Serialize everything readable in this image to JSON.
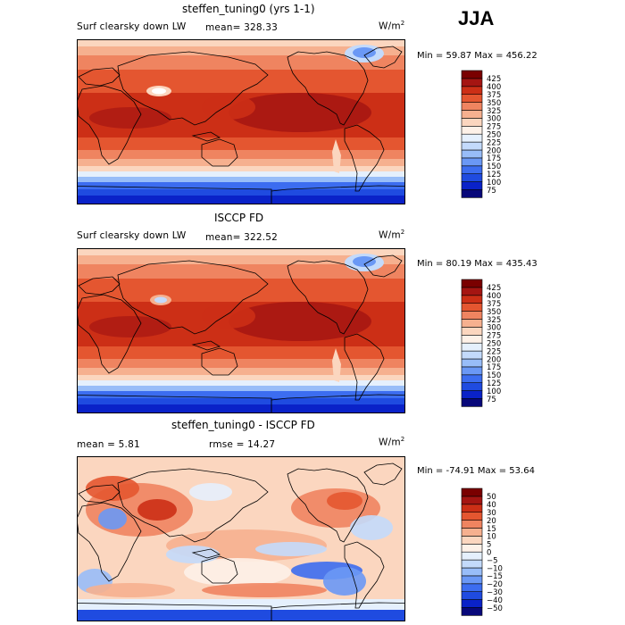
{
  "season": "JJA",
  "units_prefix": "W/m",
  "units_power": "2",
  "chart_data": [
    {
      "type": "heatmap",
      "title": "steffen_tuning0 (yrs 1-1)",
      "variable": "Surf clearsky down LW",
      "mean_text": "mean= 328.33",
      "minmax_text": "Min =  59.87 Max = 456.22",
      "min": 59.87,
      "max": 456.22,
      "levels": [
        75,
        100,
        125,
        150,
        175,
        200,
        225,
        250,
        275,
        300,
        325,
        350,
        375,
        400,
        425
      ],
      "colors": [
        "#08087a",
        "#0a22c8",
        "#1f4be0",
        "#3c6df0",
        "#6a98f5",
        "#98bdf8",
        "#c3dafb",
        "#e5f0fd",
        "#fdf1e8",
        "#fbd6bf",
        "#f6b08f",
        "#ef8460",
        "#e45630",
        "#cc2f16",
        "#a51512",
        "#7a0000"
      ]
    },
    {
      "type": "heatmap",
      "title": "ISCCP FD",
      "variable": "Surf clearsky down LW",
      "mean_text": "mean= 322.52",
      "minmax_text": "Min =  80.19 Max = 435.43",
      "min": 80.19,
      "max": 435.43,
      "levels": [
        75,
        100,
        125,
        150,
        175,
        200,
        225,
        250,
        275,
        300,
        325,
        350,
        375,
        400,
        425
      ],
      "colors": [
        "#08087a",
        "#0a22c8",
        "#1f4be0",
        "#3c6df0",
        "#6a98f5",
        "#98bdf8",
        "#c3dafb",
        "#e5f0fd",
        "#fdf1e8",
        "#fbd6bf",
        "#f6b08f",
        "#ef8460",
        "#e45630",
        "#cc2f16",
        "#a51512",
        "#7a0000"
      ]
    },
    {
      "type": "heatmap",
      "title": "steffen_tuning0 - ISCCP FD",
      "mean_text": "mean =    5.81",
      "rmse_text": "rmse =  14.27",
      "minmax_text": "Min = -74.91 Max =  53.64",
      "min": -74.91,
      "max": 53.64,
      "levels": [
        -50,
        -40,
        -30,
        -20,
        -15,
        -10,
        -5,
        0,
        5,
        10,
        15,
        20,
        30,
        40,
        50
      ],
      "colors": [
        "#08087a",
        "#0a22c8",
        "#1f4be0",
        "#3c6df0",
        "#6a98f5",
        "#98bdf8",
        "#c3dafb",
        "#e5f0fd",
        "#fdf1e8",
        "#fbd6bf",
        "#f6b08f",
        "#ef8460",
        "#e45630",
        "#cc2f16",
        "#a51512",
        "#7a0000"
      ]
    }
  ]
}
